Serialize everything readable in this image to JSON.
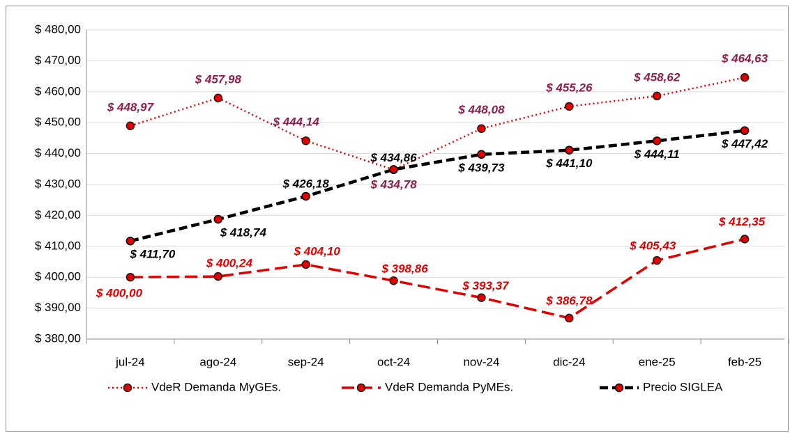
{
  "chart_data": {
    "type": "line",
    "categories": [
      "jul-24",
      "ago-24",
      "sep-24",
      "oct-24",
      "nov-24",
      "dic-24",
      "ene-25",
      "feb-25"
    ],
    "series": [
      {
        "name": "VdeR Demanda MyGEs.",
        "color": "#e00000",
        "line_style": "dotted",
        "marker_fill": "#e00000",
        "marker_edge": "#1a1a1a",
        "label_color": "#8b1e4b",
        "values": [
          448.97,
          457.98,
          444.14,
          434.78,
          448.08,
          455.26,
          458.62,
          464.63
        ],
        "value_labels": [
          "$ 448,97",
          "$ 457,98",
          "$ 444,14",
          "$ 434,78",
          "$ 448,08",
          "$ 455,26",
          "$ 458,62",
          "$ 464,63"
        ]
      },
      {
        "name": "VdeR Demanda PyMEs.",
        "color": "#e00000",
        "line_style": "longdash",
        "marker_fill": "#e00000",
        "marker_edge": "#1a1a1a",
        "label_color": "#e00000",
        "values": [
          400.0,
          400.24,
          404.1,
          398.86,
          393.37,
          386.78,
          405.43,
          412.35
        ],
        "value_labels": [
          "$ 400,00",
          "$ 400,24",
          "$ 404,10",
          "$ 398,86",
          "$ 393,37",
          "$ 386,78",
          "$ 405,43",
          "$ 412,35"
        ]
      },
      {
        "name": "Precio SIGLEA",
        "color": "#000000",
        "line_style": "dashed",
        "marker_fill": "#e00000",
        "marker_edge": "#000000",
        "label_color": "#000000",
        "values": [
          411.7,
          418.74,
          426.18,
          434.86,
          439.73,
          441.1,
          444.11,
          447.42
        ],
        "value_labels": [
          "$ 411,70",
          "$ 418,74",
          "$ 426,18",
          "$ 434,86",
          "$ 439,73",
          "$ 441,10",
          "$ 444,11",
          "$ 447,42"
        ]
      }
    ],
    "ylim": [
      380,
      480
    ],
    "yticks": [
      {
        "value": 380,
        "label": "$ 380,00"
      },
      {
        "value": 390,
        "label": "$ 390,00"
      },
      {
        "value": 400,
        "label": "$ 400,00"
      },
      {
        "value": 410,
        "label": "$ 410,00"
      },
      {
        "value": 420,
        "label": "$ 420,00"
      },
      {
        "value": 430,
        "label": "$ 430,00"
      },
      {
        "value": 440,
        "label": "$ 440,00"
      },
      {
        "value": 450,
        "label": "$ 450,00"
      },
      {
        "value": 460,
        "label": "$ 460,00"
      },
      {
        "value": 470,
        "label": "$ 470,00"
      },
      {
        "value": 480,
        "label": "$ 480,00"
      }
    ],
    "grid": true,
    "legend": "bottom"
  }
}
